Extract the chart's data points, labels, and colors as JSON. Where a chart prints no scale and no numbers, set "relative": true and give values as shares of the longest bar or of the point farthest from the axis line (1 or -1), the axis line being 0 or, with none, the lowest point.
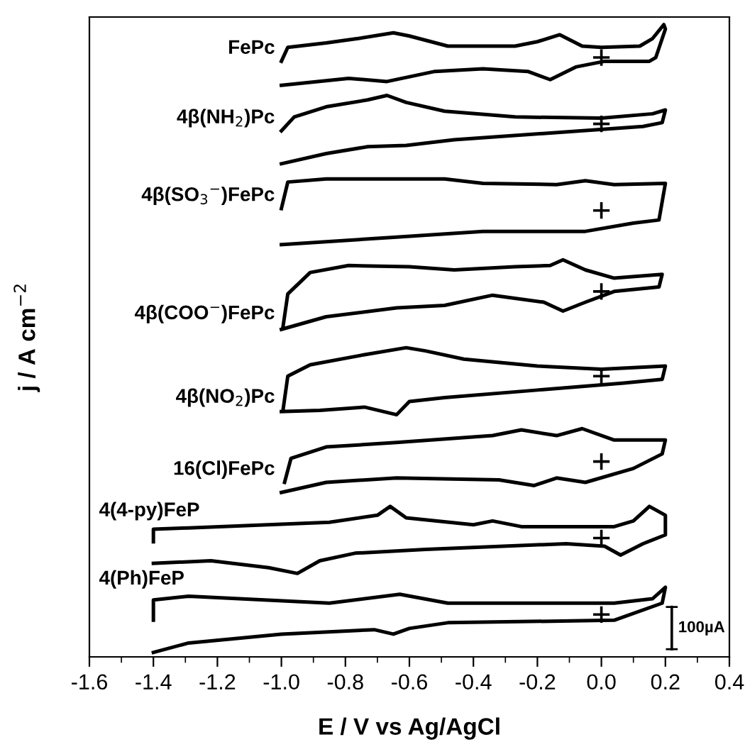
{
  "chart_data": {
    "type": "line",
    "relative": true,
    "xlabel": "E / V vs Ag/AgCl",
    "ylabel": "j / A cm$^{−2}$",
    "xlim": [
      -1.6,
      0.4
    ],
    "xticks": [
      -1.6,
      -1.4,
      -1.2,
      {
        "value": -1.0,
        "label": "-1.0"
      },
      -0.8,
      -0.6,
      -0.4,
      -0.2,
      {
        "value": 0.0,
        "label": "0.0"
      },
      0.2,
      0.4
    ],
    "grid": false,
    "legend": false,
    "line_style": "solid",
    "marker": "none",
    "annotations": [
      "100µA"
    ],
    "series": [
      {
        "name": "FePc",
        "color": "#000000",
        "x": [
          -1.0,
          -0.98,
          -0.86,
          -0.76,
          -0.65,
          -0.6,
          -0.48,
          -0.27,
          -0.2,
          -0.13,
          -0.06,
          0.0,
          0.12,
          0.16,
          0.195,
          0.2,
          0.17,
          0.15,
          0.01,
          -0.08,
          -0.16,
          -0.23,
          -0.37,
          -0.52,
          -0.67,
          -0.79,
          -1.0
        ],
        "values": [
          0.942,
          0.964,
          0.971,
          0.978,
          0.987,
          0.982,
          0.966,
          0.966,
          0.973,
          0.984,
          0.966,
          0.964,
          0.966,
          0.978,
          1.0,
          0.993,
          0.948,
          0.942,
          0.942,
          0.933,
          0.913,
          0.926,
          0.93,
          0.926,
          0.91,
          0.915,
          0.904
        ]
      },
      {
        "name": "4β(NH$_{2}$)Pc",
        "color": "#000000",
        "x": [
          -1.0,
          -0.96,
          -0.86,
          -0.73,
          -0.67,
          -0.61,
          -0.49,
          -0.27,
          0.0,
          0.16,
          0.2,
          0.19,
          0.13,
          -0.12,
          -0.46,
          -0.61,
          -0.73,
          -0.86,
          -1.0
        ],
        "values": [
          0.832,
          0.854,
          0.87,
          0.881,
          0.888,
          0.877,
          0.863,
          0.854,
          0.852,
          0.859,
          0.865,
          0.845,
          0.839,
          0.83,
          0.818,
          0.809,
          0.807,
          0.796,
          0.78
        ]
      },
      {
        "name": "4β(SO$_{3}$$^{−}$)FePc",
        "color": "#000000",
        "x": [
          -1.0,
          -0.98,
          -0.86,
          -0.49,
          -0.37,
          -0.14,
          -0.05,
          0.04,
          0.2,
          0.18,
          0.1,
          -0.05,
          -0.16,
          -0.37,
          -0.64,
          -1.0
        ],
        "values": [
          0.709,
          0.751,
          0.756,
          0.756,
          0.749,
          0.747,
          0.753,
          0.747,
          0.749,
          0.691,
          0.686,
          0.673,
          0.673,
          0.673,
          0.664,
          0.652
        ]
      },
      {
        "name": "4β(COO$^{−}$)FePc",
        "color": "#000000",
        "x": [
          -0.995,
          -0.98,
          -0.91,
          -0.79,
          -0.6,
          -0.46,
          -0.27,
          -0.16,
          -0.12,
          -0.05,
          0.04,
          0.19,
          0.18,
          0.04,
          -0.05,
          -0.12,
          -0.18,
          -0.34,
          -0.49,
          -0.64,
          -0.86,
          -1.0
        ],
        "values": [
          0.522,
          0.574,
          0.608,
          0.619,
          0.617,
          0.612,
          0.617,
          0.619,
          0.628,
          0.612,
          0.599,
          0.605,
          0.585,
          0.578,
          0.561,
          0.547,
          0.561,
          0.572,
          0.556,
          0.552,
          0.538,
          0.518
        ]
      },
      {
        "name": "4β(NO$_{2}$)Pc",
        "color": "#000000",
        "x": [
          -0.995,
          -0.98,
          -0.91,
          -0.74,
          -0.61,
          -0.55,
          -0.43,
          -0.2,
          0.0,
          0.2,
          0.19,
          0.07,
          -0.2,
          -0.49,
          -0.6,
          -0.64,
          -0.74,
          -0.88,
          -1.0
        ],
        "values": [
          0.39,
          0.444,
          0.462,
          0.478,
          0.489,
          0.484,
          0.471,
          0.46,
          0.455,
          0.46,
          0.439,
          0.433,
          0.422,
          0.41,
          0.404,
          0.383,
          0.395,
          0.39,
          0.388
        ]
      },
      {
        "name": "16(Cl)FePc",
        "color": "#000000",
        "x": [
          -0.99,
          -0.97,
          -0.86,
          -0.64,
          -0.34,
          -0.25,
          -0.14,
          -0.06,
          0.04,
          0.2,
          0.19,
          0.1,
          -0.05,
          -0.14,
          -0.21,
          -0.32,
          -0.64,
          -0.86,
          -1.0
        ],
        "values": [
          0.276,
          0.314,
          0.332,
          0.339,
          0.35,
          0.359,
          0.35,
          0.361,
          0.343,
          0.343,
          0.321,
          0.298,
          0.276,
          0.283,
          0.271,
          0.28,
          0.283,
          0.276,
          0.26
        ]
      },
      {
        "name": "4(4-py)FeP",
        "color": "#000000",
        "x": [
          -1.4,
          -1.4,
          -1.29,
          -0.85,
          -0.7,
          -0.66,
          -0.61,
          -0.4,
          -0.34,
          -0.25,
          0.04,
          0.1,
          0.15,
          0.2,
          0.2,
          0.13,
          0.06,
          0.01,
          -0.11,
          -0.55,
          -0.77,
          -0.88,
          -0.95,
          -1.04,
          -1.22,
          -1.4
        ],
        "values": [
          0.182,
          0.202,
          0.204,
          0.213,
          0.224,
          0.238,
          0.22,
          0.209,
          0.215,
          0.206,
          0.206,
          0.215,
          0.238,
          0.224,
          0.193,
          0.179,
          0.161,
          0.175,
          0.179,
          0.17,
          0.164,
          0.152,
          0.132,
          0.141,
          0.152,
          0.148
        ]
      },
      {
        "name": "4(Ph)FeP",
        "color": "#000000",
        "x": [
          -1.4,
          -1.4,
          -1.29,
          -0.85,
          -0.63,
          -0.48,
          0.04,
          0.16,
          0.2,
          0.19,
          0.04,
          -0.48,
          -0.6,
          -0.65,
          -0.71,
          -1.0,
          -1.29,
          -1.4
        ],
        "values": [
          0.058,
          0.09,
          0.096,
          0.085,
          0.099,
          0.085,
          0.085,
          0.092,
          0.11,
          0.085,
          0.058,
          0.054,
          0.045,
          0.036,
          0.043,
          0.036,
          0.022,
          0.007
        ]
      },
      {
        "type": "scatter",
        "marker": "cross",
        "color": "#000000",
        "x": [
          0.0,
          0.0,
          0.0,
          0.0,
          0.0,
          0.0,
          0.0,
          0.0
        ],
        "values": [
          0.948,
          0.843,
          0.706,
          0.578,
          0.444,
          0.309,
          0.188,
          0.067
        ]
      }
    ]
  }
}
